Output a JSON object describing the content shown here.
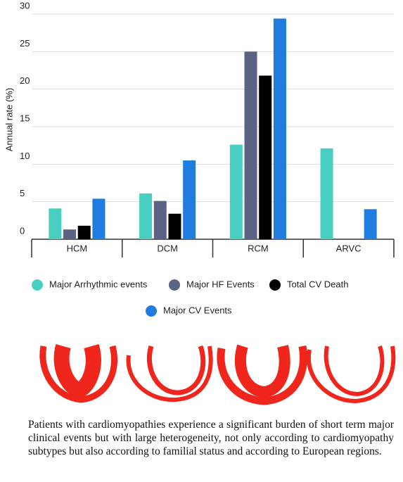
{
  "chart_data": {
    "type": "bar",
    "y_label": "Annual rate (%)",
    "categories": [
      "HCM",
      "DCM",
      "RCM",
      "ARVC"
    ],
    "series": [
      {
        "name": "Major Arrhythmic events",
        "color": "#48cfc1",
        "values": [
          4.1,
          6.1,
          12.6,
          12.1
        ]
      },
      {
        "name": "Major HF Events",
        "color": "#5a6384",
        "values": [
          1.3,
          5.1,
          25,
          null
        ]
      },
      {
        "name": "Total CV Death",
        "color": "#000000",
        "values": [
          1.8,
          3.4,
          21.8,
          null
        ]
      },
      {
        "name": "Major CV Events",
        "color": "#1f7de0",
        "values": [
          5.4,
          10.5,
          29.4,
          4.0
        ]
      }
    ],
    "ylim": [
      0,
      30
    ],
    "yticks": [
      0,
      5,
      10,
      15,
      20,
      25,
      30
    ],
    "grid": true
  },
  "caption": "Patients with cardiomyopathies experience a significant burden of short term major clinical events but with large heterogeneity, not only according to cardiomyopathy subtypes but also according to familial status and according to European regions."
}
